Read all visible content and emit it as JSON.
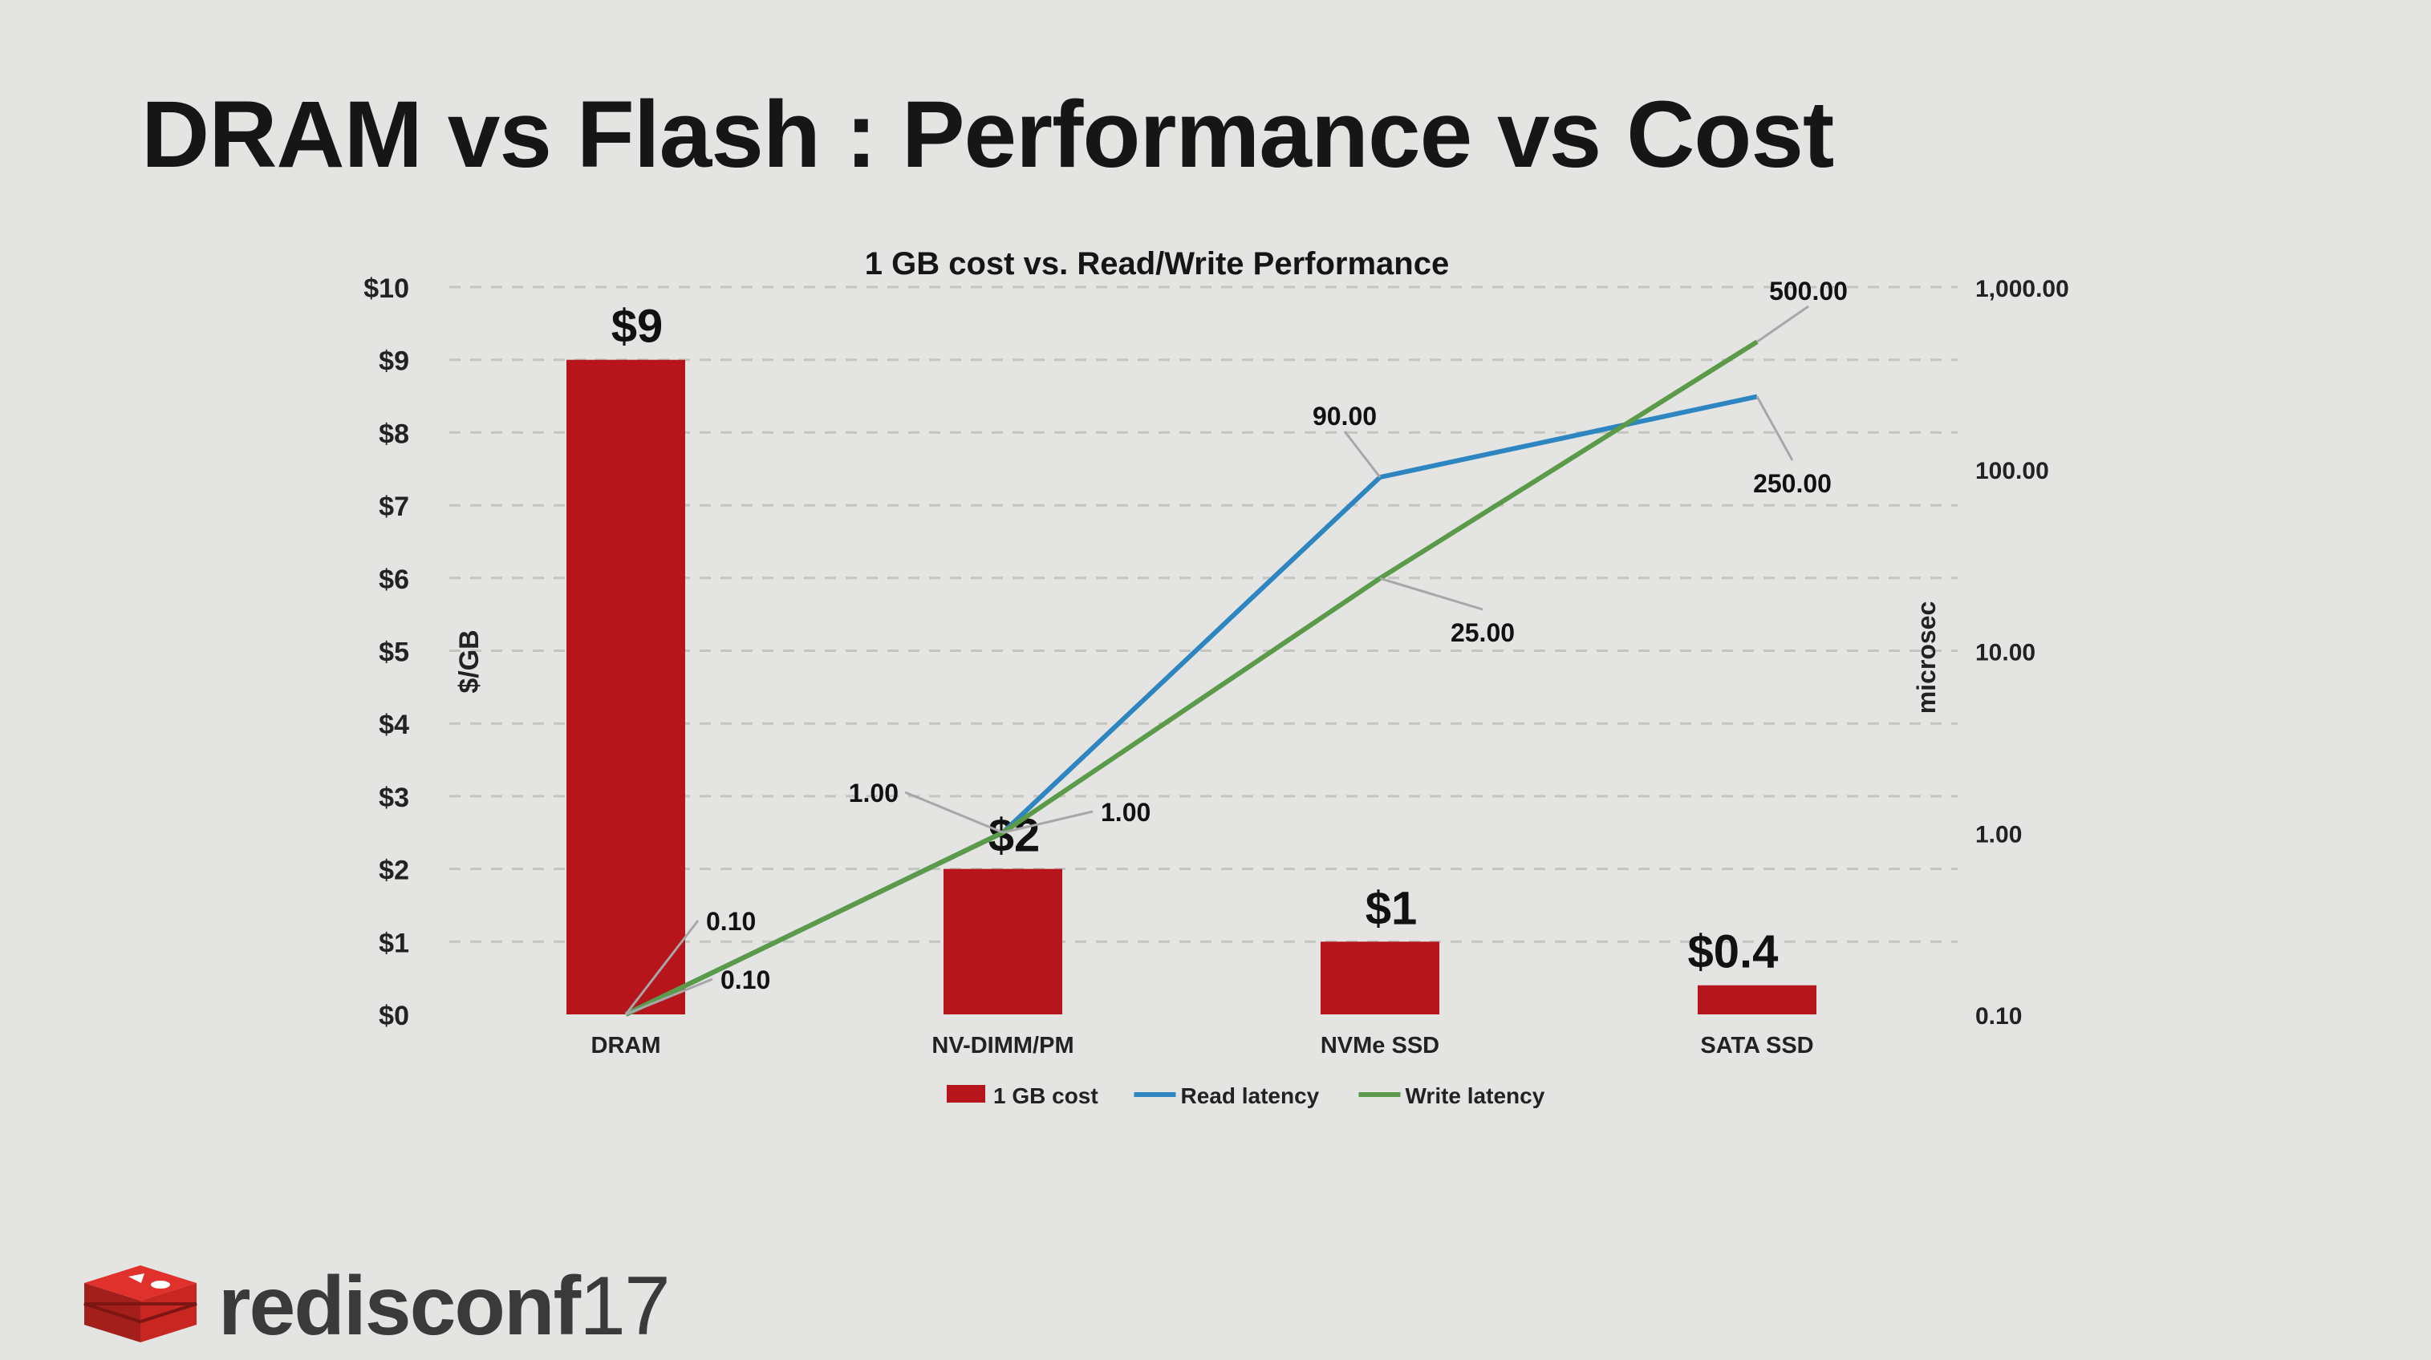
{
  "slide": {
    "title": "DRAM vs Flash : Performance vs Cost",
    "logo": {
      "word": "redisconf",
      "year": "17",
      "icon": "redis-cube-icon"
    }
  },
  "chart_data": {
    "type": "bar",
    "title": "1 GB cost vs. Read/Write Performance",
    "categories": [
      "DRAM",
      "NV-DIMM/PM",
      "NVMe SSD",
      "SATA SSD"
    ],
    "ylabel": "$/GB",
    "ylim": [
      0,
      10
    ],
    "yticks": [
      "$0",
      "$1",
      "$2",
      "$3",
      "$4",
      "$5",
      "$6",
      "$7",
      "$8",
      "$9",
      "$10"
    ],
    "y2label": "microsec",
    "y2scale": "log",
    "y2lim": [
      0.1,
      1000
    ],
    "y2ticks": [
      "0.10",
      "1.00",
      "10.00",
      "100.00",
      "1,000.00"
    ],
    "grid": true,
    "legend_position": "bottom",
    "series": [
      {
        "name": "1 GB cost",
        "kind": "bar",
        "axis": "left",
        "color": "#b5151b",
        "values": [
          9,
          2,
          1,
          0.4
        ],
        "labels": [
          "$9",
          "$2",
          "$1",
          "$0.4"
        ]
      },
      {
        "name": "Read latency",
        "kind": "line",
        "axis": "right",
        "color": "#2e86c1",
        "values": [
          0.1,
          1,
          90,
          250
        ],
        "labels": [
          "0.10",
          "1.00",
          "90.00",
          "250.00"
        ]
      },
      {
        "name": "Write latency",
        "kind": "line",
        "axis": "right",
        "color": "#5a9a48",
        "values": [
          0.1,
          1,
          25,
          500
        ],
        "labels": [
          "0.10",
          "1.00",
          "25.00",
          "500.00"
        ]
      }
    ]
  }
}
